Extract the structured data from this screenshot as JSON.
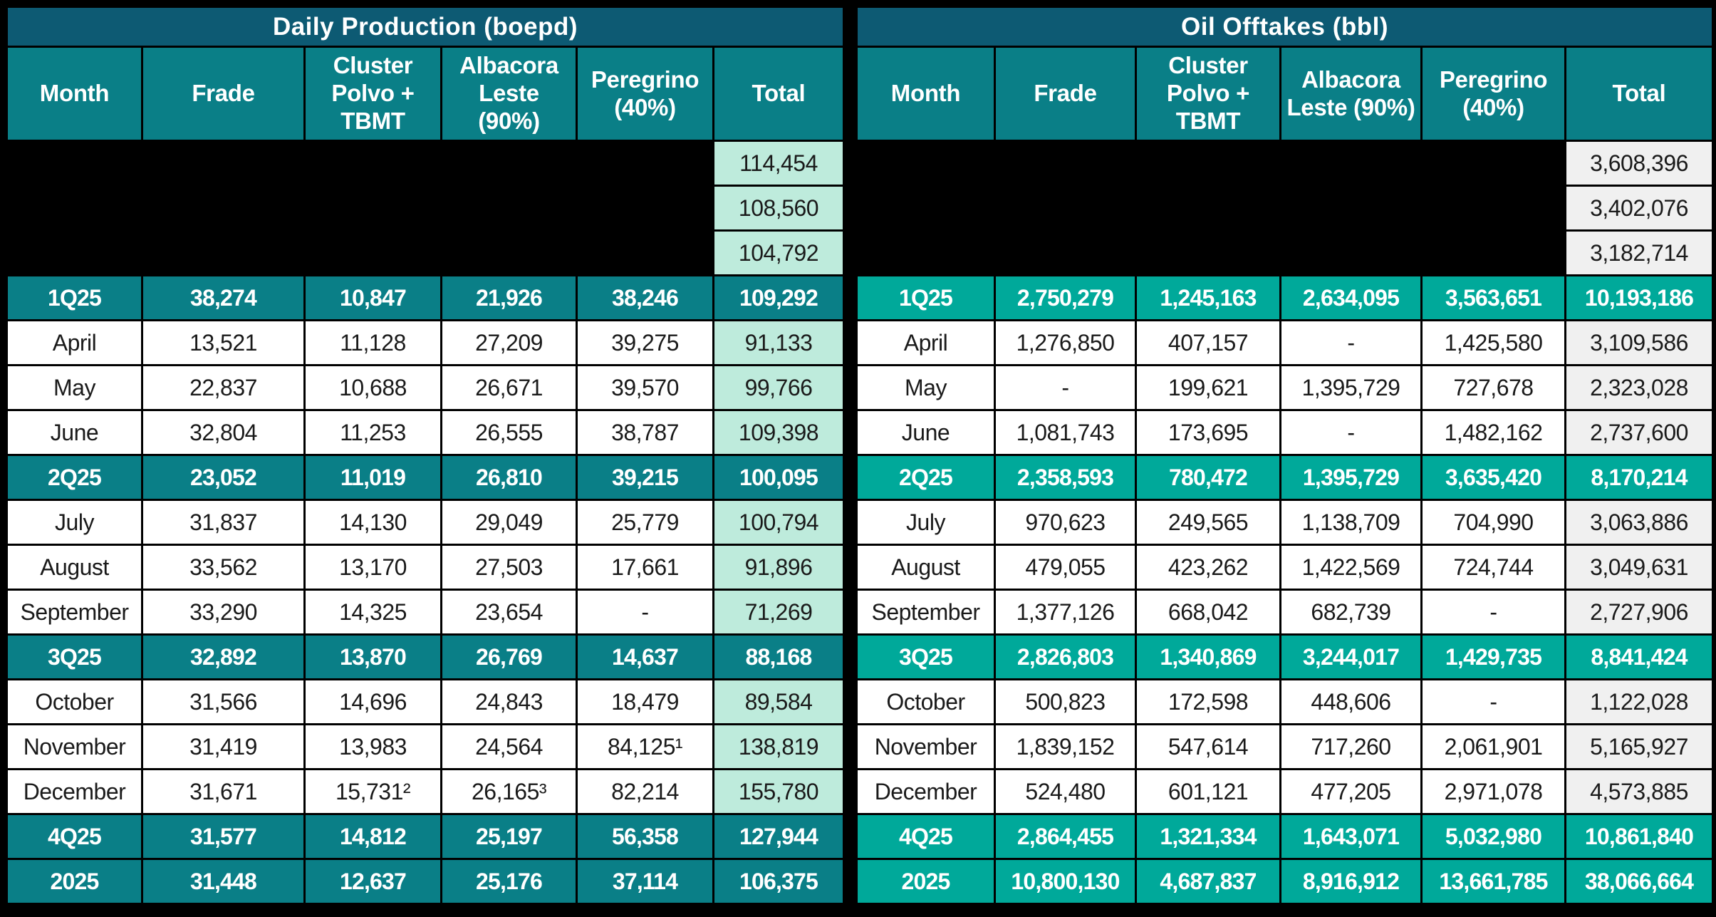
{
  "colors": {
    "title_bar_bg": "#0D5A73",
    "column_header_bg": "#0A7F87",
    "redacted_bg": "#000000",
    "row_bg": "#FFFFFF",
    "text_on_dark": "#FFFFFF",
    "text_on_light": "#1A1A1A",
    "daily_production_quarter_bg": "#0A7F87",
    "daily_production_total_bg": "#BEEBDC",
    "oil_offtakes_quarter_bg": "#00A99A",
    "oil_offtakes_total_bg": "#F0F0F0"
  },
  "tables": [
    {
      "id": "daily-production",
      "title": "Daily Production (boepd)",
      "quarter_row_color": "#0A7F87",
      "total_cell_color": "#BEEBDC",
      "columns": [
        "Month",
        "Frade",
        "Cluster Polvo + TBMT",
        "Albacora Leste (90%)",
        "Peregrino (40%)",
        "Total"
      ],
      "rows": [
        {
          "type": "redacted",
          "label": "",
          "values": [
            "",
            "",
            "",
            ""
          ],
          "total": "114,454"
        },
        {
          "type": "redacted",
          "label": "",
          "values": [
            "",
            "",
            "",
            ""
          ],
          "total": "108,560"
        },
        {
          "type": "redacted",
          "label": "",
          "values": [
            "",
            "",
            "",
            ""
          ],
          "total": "104,792"
        },
        {
          "type": "quarter",
          "label": "1Q25",
          "values": [
            "38,274",
            "10,847",
            "21,926",
            "38,246"
          ],
          "total": "109,292"
        },
        {
          "type": "month",
          "label": "April",
          "values": [
            "13,521",
            "11,128",
            "27,209",
            "39,275"
          ],
          "total": "91,133"
        },
        {
          "type": "month",
          "label": "May",
          "values": [
            "22,837",
            "10,688",
            "26,671",
            "39,570"
          ],
          "total": "99,766"
        },
        {
          "type": "month",
          "label": "June",
          "values": [
            "32,804",
            "11,253",
            "26,555",
            "38,787"
          ],
          "total": "109,398"
        },
        {
          "type": "quarter",
          "label": "2Q25",
          "values": [
            "23,052",
            "11,019",
            "26,810",
            "39,215"
          ],
          "total": "100,095"
        },
        {
          "type": "month",
          "label": "July",
          "values": [
            "31,837",
            "14,130",
            "29,049",
            "25,779"
          ],
          "total": "100,794"
        },
        {
          "type": "month",
          "label": "August",
          "values": [
            "33,562",
            "13,170",
            "27,503",
            "17,661"
          ],
          "total": "91,896"
        },
        {
          "type": "month",
          "label": "September",
          "values": [
            "33,290",
            "14,325",
            "23,654",
            "-"
          ],
          "total": "71,269"
        },
        {
          "type": "quarter",
          "label": "3Q25",
          "values": [
            "32,892",
            "13,870",
            "26,769",
            "14,637"
          ],
          "total": "88,168"
        },
        {
          "type": "month",
          "label": "October",
          "values": [
            "31,566",
            "14,696",
            "24,843",
            "18,479"
          ],
          "total": "89,584"
        },
        {
          "type": "month",
          "label": "November",
          "values": [
            "31,419",
            "13,983",
            "24,564",
            "84,125¹"
          ],
          "total": "138,819"
        },
        {
          "type": "month",
          "label": "December",
          "values": [
            "31,671",
            "15,731²",
            "26,165³",
            "82,214"
          ],
          "total": "155,780"
        },
        {
          "type": "quarter",
          "label": "4Q25",
          "values": [
            "31,577",
            "14,812",
            "25,197",
            "56,358"
          ],
          "total": "127,944"
        },
        {
          "type": "quarter",
          "label": "2025",
          "values": [
            "31,448",
            "12,637",
            "25,176",
            "37,114"
          ],
          "total": "106,375"
        }
      ]
    },
    {
      "id": "oil-offtakes",
      "title": "Oil Offtakes (bbl)",
      "quarter_row_color": "#00A99A",
      "total_cell_color": "#F0F0F0",
      "columns": [
        "Month",
        "Frade",
        "Cluster Polvo + TBMT",
        "Albacora Leste (90%)",
        "Peregrino (40%)",
        "Total"
      ],
      "rows": [
        {
          "type": "redacted",
          "label": "",
          "values": [
            "",
            "",
            "",
            ""
          ],
          "total": "3,608,396"
        },
        {
          "type": "redacted",
          "label": "",
          "values": [
            "",
            "",
            "",
            ""
          ],
          "total": "3,402,076"
        },
        {
          "type": "redacted",
          "label": "",
          "values": [
            "",
            "",
            "",
            ""
          ],
          "total": "3,182,714"
        },
        {
          "type": "quarter",
          "label": "1Q25",
          "values": [
            "2,750,279",
            "1,245,163",
            "2,634,095",
            "3,563,651"
          ],
          "total": "10,193,186"
        },
        {
          "type": "month",
          "label": "April",
          "values": [
            "1,276,850",
            "407,157",
            "-",
            "1,425,580"
          ],
          "total": "3,109,586"
        },
        {
          "type": "month",
          "label": "May",
          "values": [
            "-",
            "199,621",
            "1,395,729",
            "727,678"
          ],
          "total": "2,323,028"
        },
        {
          "type": "month",
          "label": "June",
          "values": [
            "1,081,743",
            "173,695",
            "-",
            "1,482,162"
          ],
          "total": "2,737,600"
        },
        {
          "type": "quarter",
          "label": "2Q25",
          "values": [
            "2,358,593",
            "780,472",
            "1,395,729",
            "3,635,420"
          ],
          "total": "8,170,214"
        },
        {
          "type": "month",
          "label": "July",
          "values": [
            "970,623",
            "249,565",
            "1,138,709",
            "704,990"
          ],
          "total": "3,063,886"
        },
        {
          "type": "month",
          "label": "August",
          "values": [
            "479,055",
            "423,262",
            "1,422,569",
            "724,744"
          ],
          "total": "3,049,631"
        },
        {
          "type": "month",
          "label": "September",
          "values": [
            "1,377,126",
            "668,042",
            "682,739",
            "-"
          ],
          "total": "2,727,906"
        },
        {
          "type": "quarter",
          "label": "3Q25",
          "values": [
            "2,826,803",
            "1,340,869",
            "3,244,017",
            "1,429,735"
          ],
          "total": "8,841,424"
        },
        {
          "type": "month",
          "label": "October",
          "values": [
            "500,823",
            "172,598",
            "448,606",
            "-"
          ],
          "total": "1,122,028"
        },
        {
          "type": "month",
          "label": "November",
          "values": [
            "1,839,152",
            "547,614",
            "717,260",
            "2,061,901"
          ],
          "total": "5,165,927"
        },
        {
          "type": "month",
          "label": "December",
          "values": [
            "524,480",
            "601,121",
            "477,205",
            "2,971,078"
          ],
          "total": "4,573,885"
        },
        {
          "type": "quarter",
          "label": "4Q25",
          "values": [
            "2,864,455",
            "1,321,334",
            "1,643,071",
            "5,032,980"
          ],
          "total": "10,861,840"
        },
        {
          "type": "quarter",
          "label": "2025",
          "values": [
            "10,800,130",
            "4,687,837",
            "8,916,912",
            "13,661,785"
          ],
          "total": "38,066,664"
        }
      ]
    }
  ]
}
